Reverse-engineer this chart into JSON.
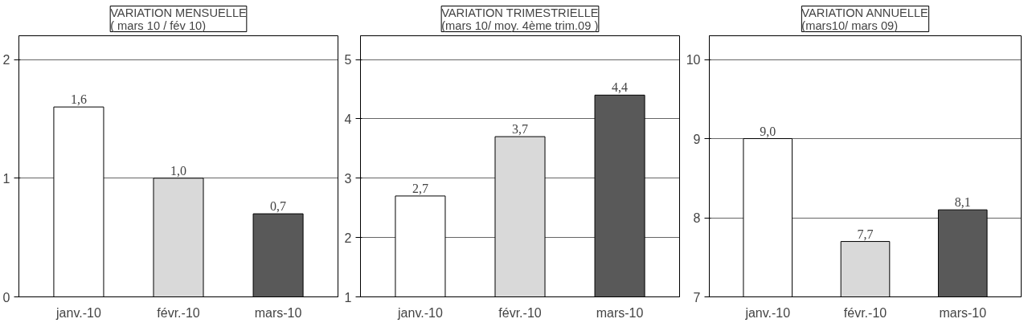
{
  "chart_data": [
    {
      "type": "bar",
      "title": "VARIATION MENSUELLE\n( mars 10 / fév 10)",
      "categories": [
        "janv.-10",
        "févr.-10",
        "mars-10"
      ],
      "values": [
        1.6,
        1.0,
        0.7
      ],
      "value_labels": [
        "1,6",
        "1,0",
        "0,7"
      ],
      "colors": [
        "#ffffff",
        "#d9d9d9",
        "#595959"
      ],
      "ylim": [
        0,
        2.2
      ],
      "yticks": [
        0,
        1,
        2
      ],
      "grid": "y"
    },
    {
      "type": "bar",
      "title": "VARIATION TRIMESTRIELLE\n(mars 10/ moy. 4ème trim.09 )",
      "categories": [
        "janv.-10",
        "févr.-10",
        "mars-10"
      ],
      "values": [
        2.7,
        3.7,
        4.4
      ],
      "value_labels": [
        "2,7",
        "3,7",
        "4,4"
      ],
      "colors": [
        "#ffffff",
        "#d9d9d9",
        "#595959"
      ],
      "ylim": [
        1,
        5.4
      ],
      "yticks": [
        1,
        2,
        3,
        4,
        5
      ],
      "grid": "y"
    },
    {
      "type": "bar",
      "title": "VARIATION ANNUELLE\n(mars10/ mars 09)",
      "categories": [
        "janv.-10",
        "févr.-10",
        "mars-10"
      ],
      "values": [
        9.0,
        7.7,
        8.1
      ],
      "value_labels": [
        "9,0",
        "7,7",
        "8,1"
      ],
      "colors": [
        "#ffffff",
        "#d9d9d9",
        "#595959"
      ],
      "ylim": [
        7,
        10.3
      ],
      "yticks": [
        7,
        8,
        9,
        10
      ],
      "grid": "y"
    }
  ]
}
